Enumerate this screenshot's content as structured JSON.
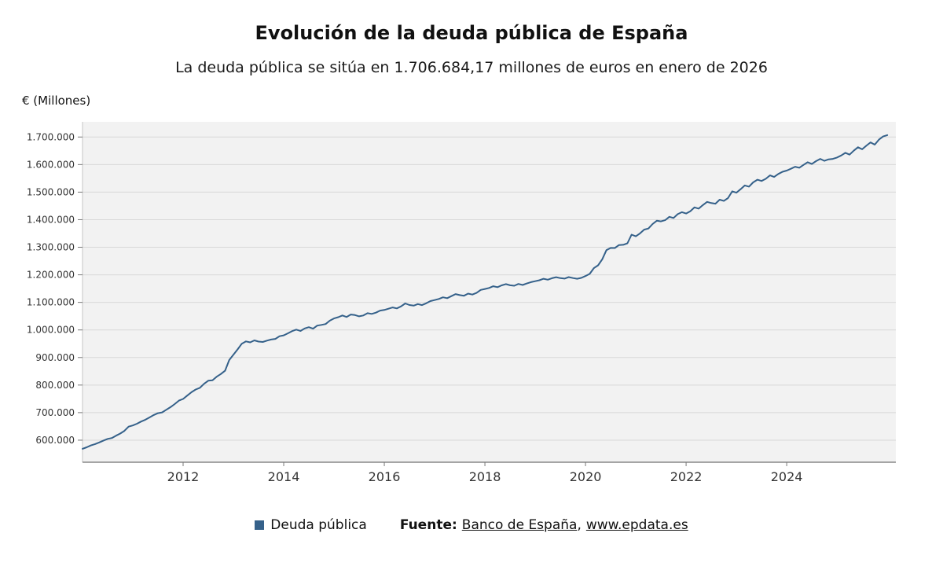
{
  "page": {
    "title": "Evolución de la deuda pública de España",
    "subtitle": "La deuda pública se sitúa en 1.706.684,17 millones de euros en enero de 2026"
  },
  "axes": {
    "y_unit": "€ (Millones)"
  },
  "legend": {
    "label": "Deuda pública"
  },
  "source": {
    "prefix": "Fuente:",
    "link1": "Banco de España",
    "separator": ",",
    "link2": "www.epdata.es"
  },
  "chart_data": {
    "type": "line",
    "title": "Evolución de la deuda pública de España",
    "subtitle": "La deuda pública se sitúa en 1.706.684,17 millones de euros en enero de 2026",
    "xlabel": "",
    "ylabel": "€ (Millones)",
    "grid": true,
    "legend_position": "bottom",
    "plot_bg": "#f2f2f2",
    "grid_color": "#d8d8d8",
    "axis_line_color": "#4d4d4d",
    "x_ticks": [
      2012,
      2014,
      2016,
      2018,
      2020,
      2022,
      2024
    ],
    "y_ticks": [
      600000,
      700000,
      800000,
      900000,
      1000000,
      1100000,
      1200000,
      1300000,
      1400000,
      1500000,
      1600000,
      1700000
    ],
    "x_range": [
      2010.0,
      2026.17
    ],
    "y_range": [
      520000,
      1755000
    ],
    "series": [
      {
        "name": "Deuda pública",
        "color": "#35618a",
        "x_start": 2010.0,
        "x_step_years": 0.0833333,
        "values": [
          568700,
          574300,
          580900,
          585800,
          591900,
          598800,
          604700,
          607900,
          616500,
          624200,
          633800,
          649200,
          653600,
          659900,
          667800,
          674200,
          682500,
          691400,
          697900,
          700800,
          710500,
          719800,
          731200,
          743500,
          749600,
          761800,
          774200,
          783800,
          790100,
          804600,
          815700,
          817200,
          830300,
          840100,
          852000,
          890700,
          909800,
          929500,
          950100,
          958300,
          954900,
          962200,
          957800,
          956400,
          961300,
          965200,
          967500,
          977300,
          980400,
          987900,
          995800,
          1001200,
          996300,
          1005400,
          1010100,
          1004500,
          1015600,
          1018300,
          1021500,
          1033700,
          1041800,
          1046300,
          1052500,
          1047100,
          1055900,
          1053800,
          1049300,
          1052600,
          1060800,
          1058200,
          1062700,
          1070100,
          1072400,
          1076900,
          1081600,
          1078300,
          1085700,
          1096200,
          1090500,
          1088100,
          1093900,
          1090200,
          1096600,
          1104600,
          1108300,
          1112500,
          1118400,
          1115200,
          1122600,
          1130100,
          1126400,
          1124200,
          1131700,
          1128500,
          1134300,
          1145100,
          1148600,
          1152300,
          1158700,
          1155100,
          1161800,
          1166300,
          1162100,
          1160400,
          1166900,
          1163200,
          1168500,
          1173400,
          1176800,
          1180300,
          1185600,
          1182200,
          1187700,
          1191300,
          1188100,
          1186400,
          1191800,
          1188300,
          1185600,
          1188900,
          1195800,
          1203500,
          1224200,
          1234600,
          1256300,
          1289400,
          1297600,
          1297100,
          1308200,
          1308900,
          1314300,
          1345800,
          1339700,
          1350400,
          1364100,
          1367900,
          1384300,
          1396100,
          1393800,
          1398200,
          1410500,
          1406300,
          1420100,
          1427200,
          1422400,
          1430800,
          1444600,
          1440200,
          1452900,
          1464700,
          1460300,
          1458100,
          1472500,
          1468200,
          1478400,
          1502800,
          1498100,
          1510600,
          1524300,
          1520100,
          1535400,
          1545200,
          1540600,
          1548300,
          1560700,
          1555200,
          1565800,
          1573800,
          1578300,
          1584600,
          1592200,
          1588400,
          1598700,
          1608300,
          1602100,
          1612400,
          1620800,
          1613500,
          1618900,
          1620700,
          1625400,
          1632800,
          1642500,
          1636200,
          1650300,
          1662800,
          1655400,
          1668200,
          1680600,
          1672300,
          1690500,
          1701900,
          1706684.17
        ]
      }
    ]
  }
}
